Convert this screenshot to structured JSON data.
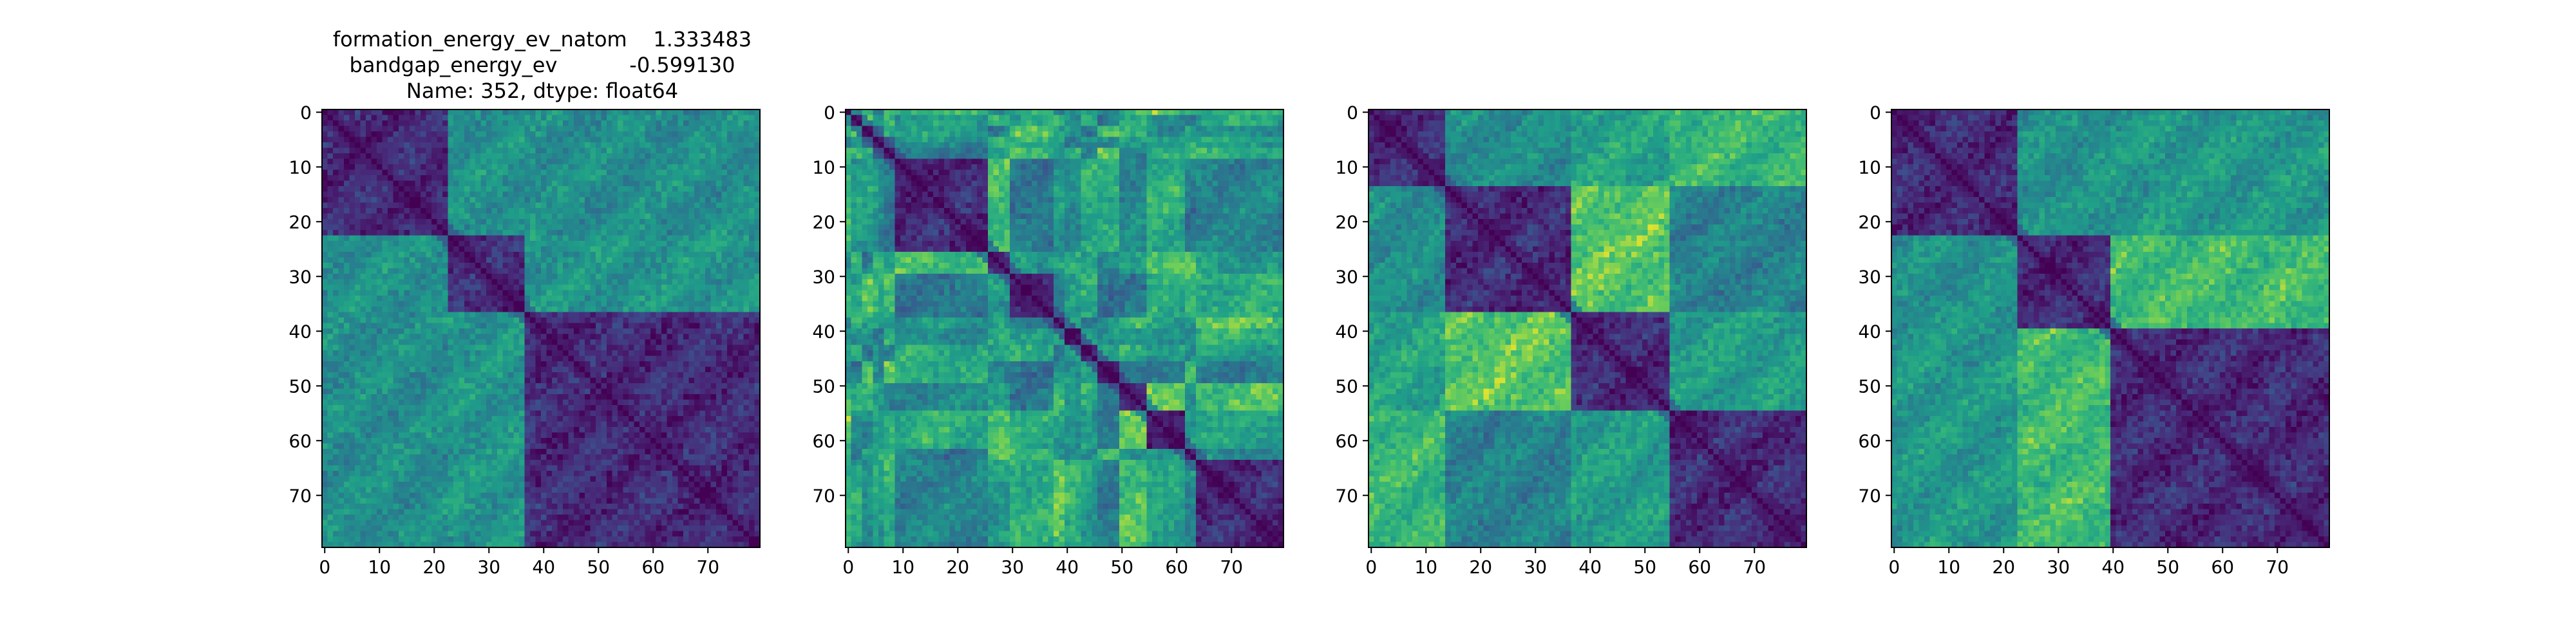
{
  "figure": {
    "title_lines": [
      "formation_energy_ev_natom    1.333483",
      "bandgap_energy_ev           -0.599130",
      "Name: 352, dtype: float64"
    ]
  },
  "chart_data": [
    {
      "type": "heatmap",
      "colormap": "viridis",
      "size": 80,
      "blocks": [
        0,
        23,
        37,
        80
      ],
      "title": "formation_energy_ev_natom    1.333483\nbandgap_energy_ev           -0.599130\nName: 352, dtype: float64",
      "xlim": [
        0,
        80
      ],
      "ylim": [
        0,
        80
      ],
      "xticks": [
        0,
        10,
        20,
        30,
        40,
        50,
        60,
        70
      ],
      "yticks": [
        0,
        10,
        20,
        30,
        40,
        50,
        60,
        70
      ]
    },
    {
      "type": "heatmap",
      "colormap": "viridis",
      "size": 80,
      "blocks": [
        0,
        1,
        3,
        5,
        7,
        9,
        26,
        30,
        38,
        40,
        43,
        46,
        50,
        55,
        62,
        64,
        80
      ],
      "xlim": [
        0,
        80
      ],
      "ylim": [
        0,
        80
      ],
      "xticks": [
        0,
        10,
        20,
        30,
        40,
        50,
        60,
        70
      ],
      "yticks": [
        0,
        10,
        20,
        30,
        40,
        50,
        60,
        70
      ]
    },
    {
      "type": "heatmap",
      "colormap": "viridis",
      "size": 80,
      "blocks": [
        0,
        14,
        37,
        55,
        80
      ],
      "xlim": [
        0,
        80
      ],
      "ylim": [
        0,
        80
      ],
      "xticks": [
        0,
        10,
        20,
        30,
        40,
        50,
        60,
        70
      ],
      "yticks": [
        0,
        10,
        20,
        30,
        40,
        50,
        60,
        70
      ]
    },
    {
      "type": "heatmap",
      "colormap": "viridis",
      "size": 80,
      "blocks": [
        0,
        23,
        40,
        80
      ],
      "xlim": [
        0,
        80
      ],
      "ylim": [
        0,
        80
      ],
      "xticks": [
        0,
        10,
        20,
        30,
        40,
        50,
        60,
        70
      ],
      "yticks": [
        0,
        10,
        20,
        30,
        40,
        50,
        60,
        70
      ]
    }
  ]
}
